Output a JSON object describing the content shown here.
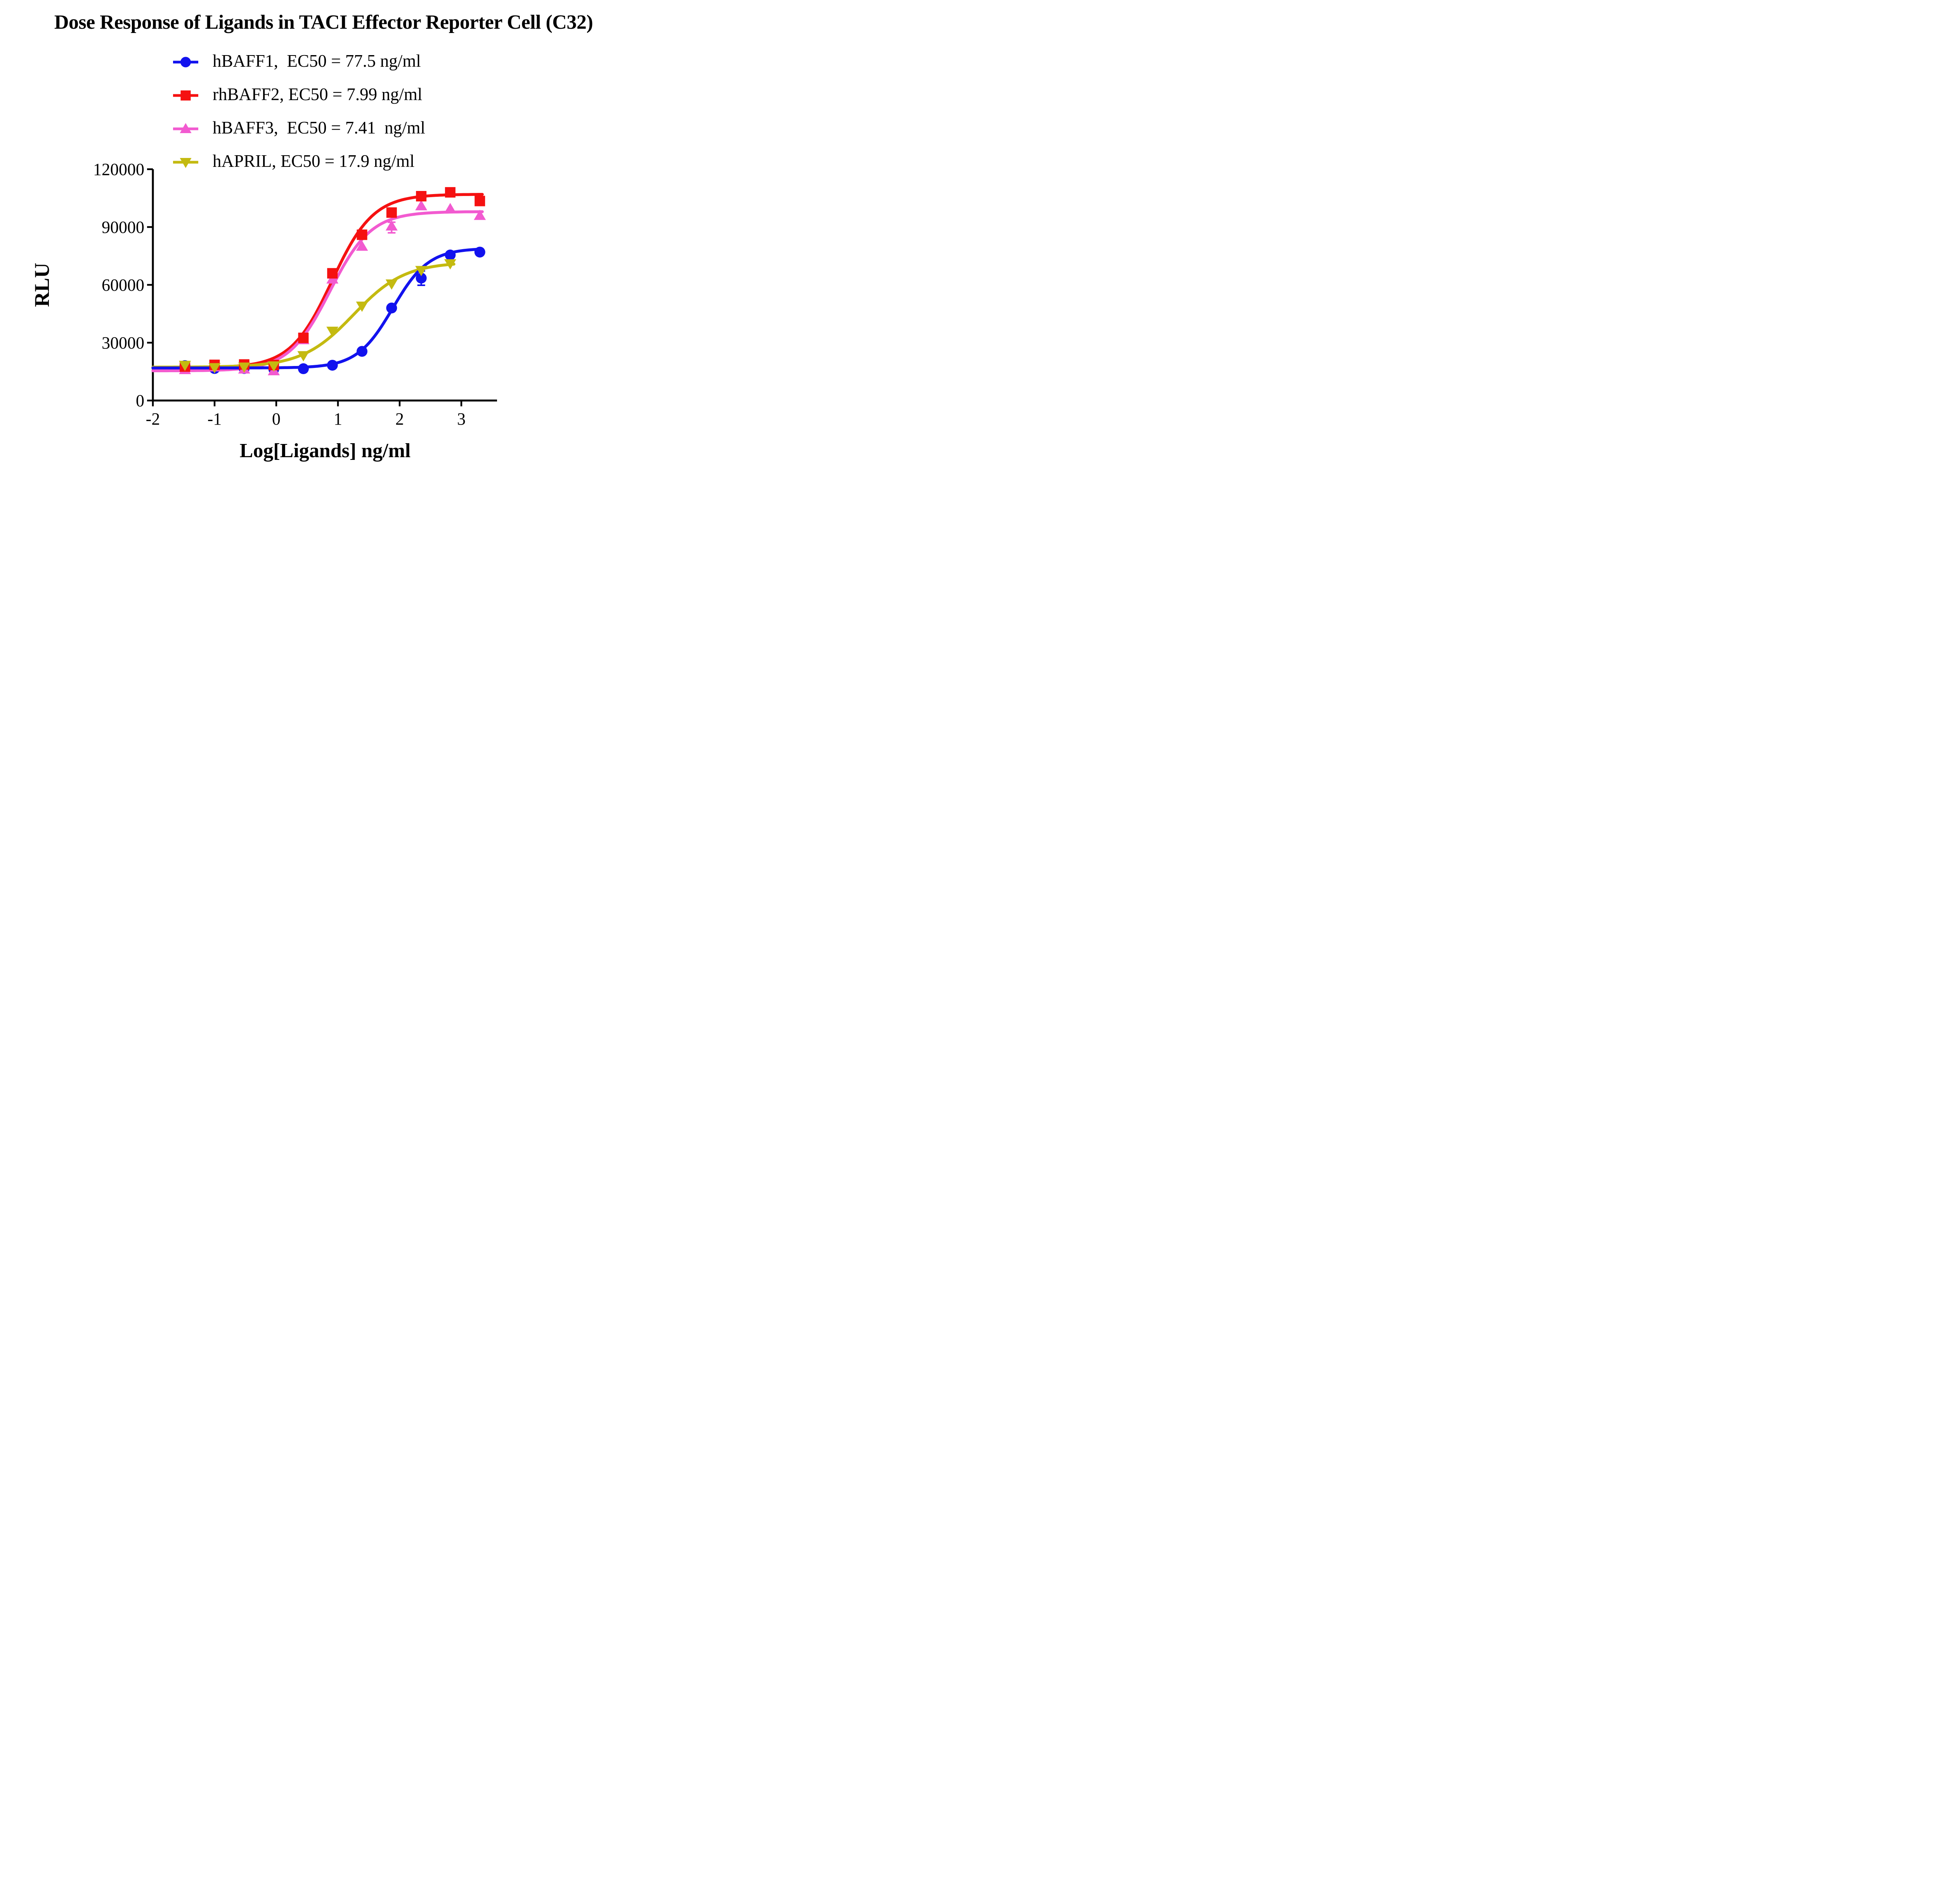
{
  "chart_data": {
    "type": "scatter",
    "title": "Dose Response of Ligands in TACI Effector Reporter Cell (C32)",
    "xlabel": "Log[Ligands] ng/ml",
    "ylabel": "RLU",
    "xlim": [
      -2,
      3.6
    ],
    "ylim": [
      0,
      120000
    ],
    "x_ticks": [
      -2,
      -1,
      0,
      1,
      2,
      3
    ],
    "y_ticks": [
      0,
      30000,
      60000,
      90000,
      120000
    ],
    "grid": false,
    "legend_position": "top-center",
    "axis_color": "#000000",
    "series": [
      {
        "name": "hBAFF1",
        "label": "hBAFF1,  EC50 = 77.5 ng/ml",
        "ec50_ng_ml": 77.5,
        "color": "#1212ee",
        "marker": "circle",
        "x": [
          -1.48,
          -1.0,
          -0.52,
          -0.04,
          0.44,
          0.91,
          1.39,
          1.87,
          2.35,
          2.82,
          3.3
        ],
        "y": [
          18100,
          16600,
          16600,
          16300,
          16500,
          18300,
          25500,
          48000,
          63500,
          75500,
          77000
        ],
        "fit": {
          "bottom": 16900,
          "top": 79000,
          "logec50": 1.889,
          "hill": 1.5,
          "xstart": -2,
          "xend": 3.34
        }
      },
      {
        "name": "rhBAFF2",
        "label": "rhBAFF2, EC50 = 7.99 ng/ml",
        "ec50_ng_ml": 7.99,
        "color": "#f51111",
        "marker": "square",
        "x": [
          -1.48,
          -1.0,
          -0.52,
          -0.04,
          0.44,
          0.91,
          1.39,
          1.87,
          2.35,
          2.82,
          3.3
        ],
        "y": [
          17600,
          18500,
          18700,
          18400,
          32500,
          66000,
          86000,
          97500,
          106000,
          108000,
          103500
        ],
        "fit": {
          "bottom": 17000,
          "top": 107000,
          "logec50": 0.903,
          "hill": 1.3,
          "xstart": -2,
          "xend": 3.34
        }
      },
      {
        "name": "hBAFF3",
        "label": "hBAFF3,  EC50 = 7.41  ng/ml",
        "ec50_ng_ml": 7.41,
        "color": "#f25ad0",
        "marker": "triangle-up",
        "x": [
          -1.48,
          -1.0,
          -0.52,
          -0.04,
          0.44,
          0.91,
          1.39,
          1.87,
          2.35,
          2.82,
          3.3
        ],
        "y": [
          16000,
          17400,
          16300,
          15400,
          31500,
          63000,
          80000,
          90500,
          101000,
          99500,
          96000
        ],
        "fit": {
          "bottom": 15400,
          "top": 98000,
          "logec50": 0.87,
          "hill": 1.3,
          "xstart": -2,
          "xend": 3.34
        }
      },
      {
        "name": "hAPRIL",
        "label": "hAPRIL, EC50 = 17.9 ng/ml",
        "ec50_ng_ml": 17.9,
        "color": "#c4ba10",
        "marker": "triangle-down",
        "x": [
          -1.48,
          -1.0,
          -0.52,
          -0.04,
          0.44,
          0.91,
          1.39,
          1.87,
          2.35,
          2.82
        ],
        "y": [
          18300,
          17100,
          17400,
          18000,
          23300,
          36000,
          49000,
          60500,
          67500,
          71000
        ],
        "fit": {
          "bottom": 17300,
          "top": 71800,
          "logec50": 1.253,
          "hill": 1.05,
          "xstart": -2,
          "xend": 2.88
        }
      }
    ],
    "error_bars": [
      {
        "series": "hBAFF1",
        "x": 2.35,
        "low": 59800,
        "high": 67200
      },
      {
        "series": "hBAFF3",
        "x": 1.87,
        "low": 87000,
        "high": 92500
      }
    ]
  }
}
